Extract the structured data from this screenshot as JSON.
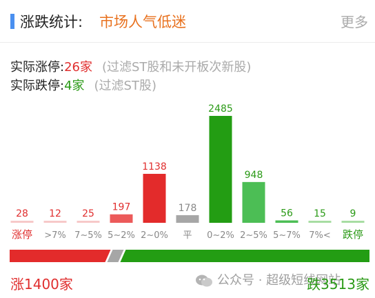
{
  "header": {
    "title": "涨跌统计:",
    "subtitle": "市场人气低迷",
    "more_label": "更多"
  },
  "info": {
    "limit_up_label": "实际涨停:",
    "limit_up_value": "26家",
    "limit_up_note": "(过滤ST股和未开板次新股)",
    "limit_down_label": "实际跌停:",
    "limit_down_value": "4家",
    "limit_down_note": "(过滤ST股)"
  },
  "chart_data": {
    "type": "bar",
    "categories": [
      "涨停",
      ">7%",
      "7~5%",
      "5~2%",
      "2~0%",
      "平",
      "0~2%",
      "2~5%",
      "5~7%",
      "7%<",
      "跌停"
    ],
    "values": [
      28,
      12,
      25,
      197,
      1138,
      178,
      2485,
      948,
      56,
      15,
      9
    ],
    "ylim": [
      0,
      2485
    ],
    "colors": [
      "#f7c9c9",
      "#f7c9c9",
      "#f7c9c9",
      "#ec5a5a",
      "#e32b2b",
      "#a6a6a6",
      "#239d13",
      "#4cbe55",
      "#4cbe55",
      "#a7dda2",
      "#a7dda2"
    ],
    "label_colors": [
      "#e02e2e",
      "#e02e2e",
      "#e02e2e",
      "#e02e2e",
      "#e02e2e",
      "#888888",
      "#2a9a16",
      "#2a9a16",
      "#2a9a16",
      "#2a9a16",
      "#2a9a16"
    ],
    "category_colors": [
      "#e02e2e",
      "#888888",
      "#888888",
      "#888888",
      "#888888",
      "#888888",
      "#888888",
      "#888888",
      "#888888",
      "#888888",
      "#2a9a16"
    ]
  },
  "ratio": {
    "up_count": 1400,
    "flat_count": 178,
    "down_count": 3513,
    "up_color": "#e32b2b",
    "flat_color": "#a6a6a6",
    "down_color": "#239d13"
  },
  "footer": {
    "up_label": "涨1400家",
    "down_label": "跌3513家"
  },
  "watermark": {
    "text": "公众号 · 超级短线网站"
  }
}
